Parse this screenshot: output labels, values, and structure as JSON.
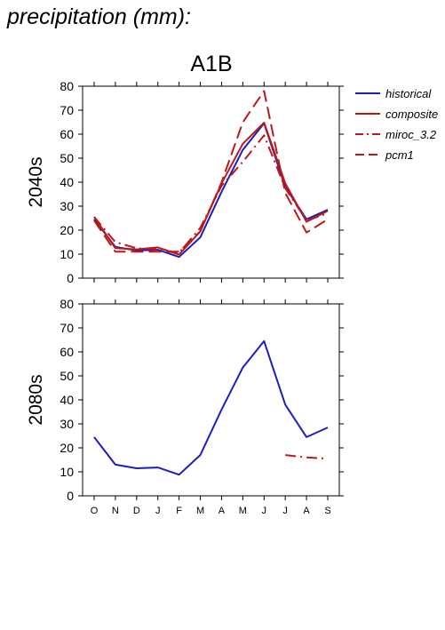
{
  "header": {
    "title": "precipitation (mm):"
  },
  "chart_data": {
    "type": "line",
    "scenario": "A1B",
    "legend": {
      "position": "right",
      "items": [
        {
          "name": "historical",
          "style": "solid",
          "color": "#1d1dbf"
        },
        {
          "name": "composite",
          "style": "solid",
          "color": "#bb1a1a"
        },
        {
          "name": "miroc_3.2",
          "style": "dashdot",
          "color": "#bb1a1a"
        },
        {
          "name": "pcm1",
          "style": "dashed",
          "color": "#bb1a1a"
        }
      ]
    },
    "categories": [
      "O",
      "N",
      "D",
      "J",
      "F",
      "M",
      "A",
      "M",
      "J",
      "J",
      "A",
      "S"
    ],
    "y_ticks": [
      0,
      10,
      20,
      30,
      40,
      50,
      60,
      70,
      80
    ],
    "panels": [
      {
        "label": "2040s",
        "ylim": [
          0,
          80
        ],
        "series": [
          {
            "name": "historical",
            "values": [
              24.5,
              13.0,
              11.5,
              11.8,
              8.8,
              17.0,
              36.0,
              53.5,
              64.5,
              38.0,
              24.5,
              28.5
            ]
          },
          {
            "name": "composite",
            "values": [
              25.5,
              12.5,
              12.0,
              12.8,
              9.8,
              19.5,
              39.5,
              56.0,
              64.8,
              39.5,
              23.5,
              28.0
            ]
          },
          {
            "name": "miroc_3.2",
            "values": [
              25.5,
              15.0,
              12.5,
              12.0,
              10.5,
              21.0,
              38.5,
              48.5,
              59.5,
              37.5,
              24.0,
              27.0
            ]
          },
          {
            "name": "pcm1",
            "values": [
              24.0,
              11.0,
              11.0,
              11.0,
              11.0,
              19.5,
              40.0,
              65.0,
              78.0,
              35.5,
              19.0,
              24.5
            ]
          }
        ]
      },
      {
        "label": "2080s",
        "ylim": [
          0,
          80
        ],
        "series": [
          {
            "name": "historical",
            "values": [
              24.5,
              13.0,
              11.5,
              11.8,
              8.8,
              17.0,
              36.0,
              53.5,
              64.5,
              38.0,
              24.5,
              28.5
            ]
          },
          {
            "name": "miroc_3.2",
            "values": [
              null,
              null,
              null,
              null,
              null,
              null,
              null,
              null,
              null,
              17.0,
              16.0,
              15.5
            ]
          }
        ]
      }
    ]
  }
}
